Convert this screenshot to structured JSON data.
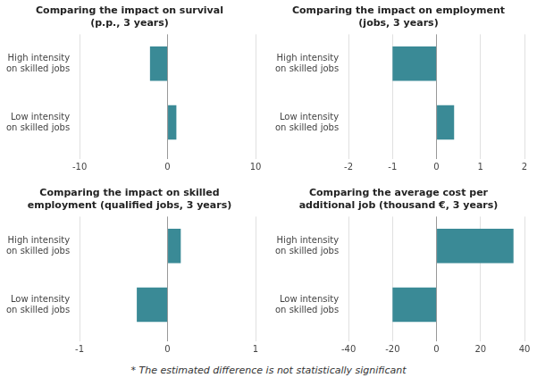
{
  "chart_data": [
    {
      "type": "bar",
      "orientation": "horizontal",
      "title": "Comparing the impact on survival\n(p.p., 3 years)",
      "categories": [
        "High intensity\non skilled jobs",
        "Low intensity\non skilled jobs"
      ],
      "values": [
        -2.0,
        1.0
      ],
      "color": "#3a8a96",
      "xlim": [
        -10,
        10
      ],
      "xticks": [
        -10,
        0,
        10
      ],
      "grid": true
    },
    {
      "type": "bar",
      "orientation": "horizontal",
      "title": "Comparing the impact on employment\n(jobs, 3 years)",
      "categories": [
        "High intensity\non skilled jobs",
        "Low intensity\non skilled jobs"
      ],
      "values": [
        -1.0,
        0.4
      ],
      "color": "#3a8a96",
      "xlim": [
        -2,
        2
      ],
      "xticks": [
        -2,
        -1,
        0,
        1,
        2
      ],
      "grid": true
    },
    {
      "type": "bar",
      "orientation": "horizontal",
      "title": "Comparing the impact on skilled\nemployment (qualified jobs, 3 years)",
      "categories": [
        "High intensity\non skilled jobs",
        "Low intensity\non skilled jobs"
      ],
      "values": [
        0.15,
        -0.35
      ],
      "color": "#3a8a96",
      "xlim": [
        -1,
        1
      ],
      "xticks": [
        -1,
        0,
        1
      ],
      "grid": true
    },
    {
      "type": "bar",
      "orientation": "horizontal",
      "title": "Comparing the average cost per\nadditional job (thousand €, 3 years)",
      "categories": [
        "High intensity\non skilled jobs",
        "Low intensity\non skilled jobs"
      ],
      "values": [
        35.0,
        -20.0
      ],
      "color": "#3a8a96",
      "xlim": [
        -40,
        40
      ],
      "xticks": [
        -40,
        -20,
        0,
        20,
        40
      ],
      "grid": true
    }
  ],
  "footnote": "* The estimated difference is not statistically significant"
}
